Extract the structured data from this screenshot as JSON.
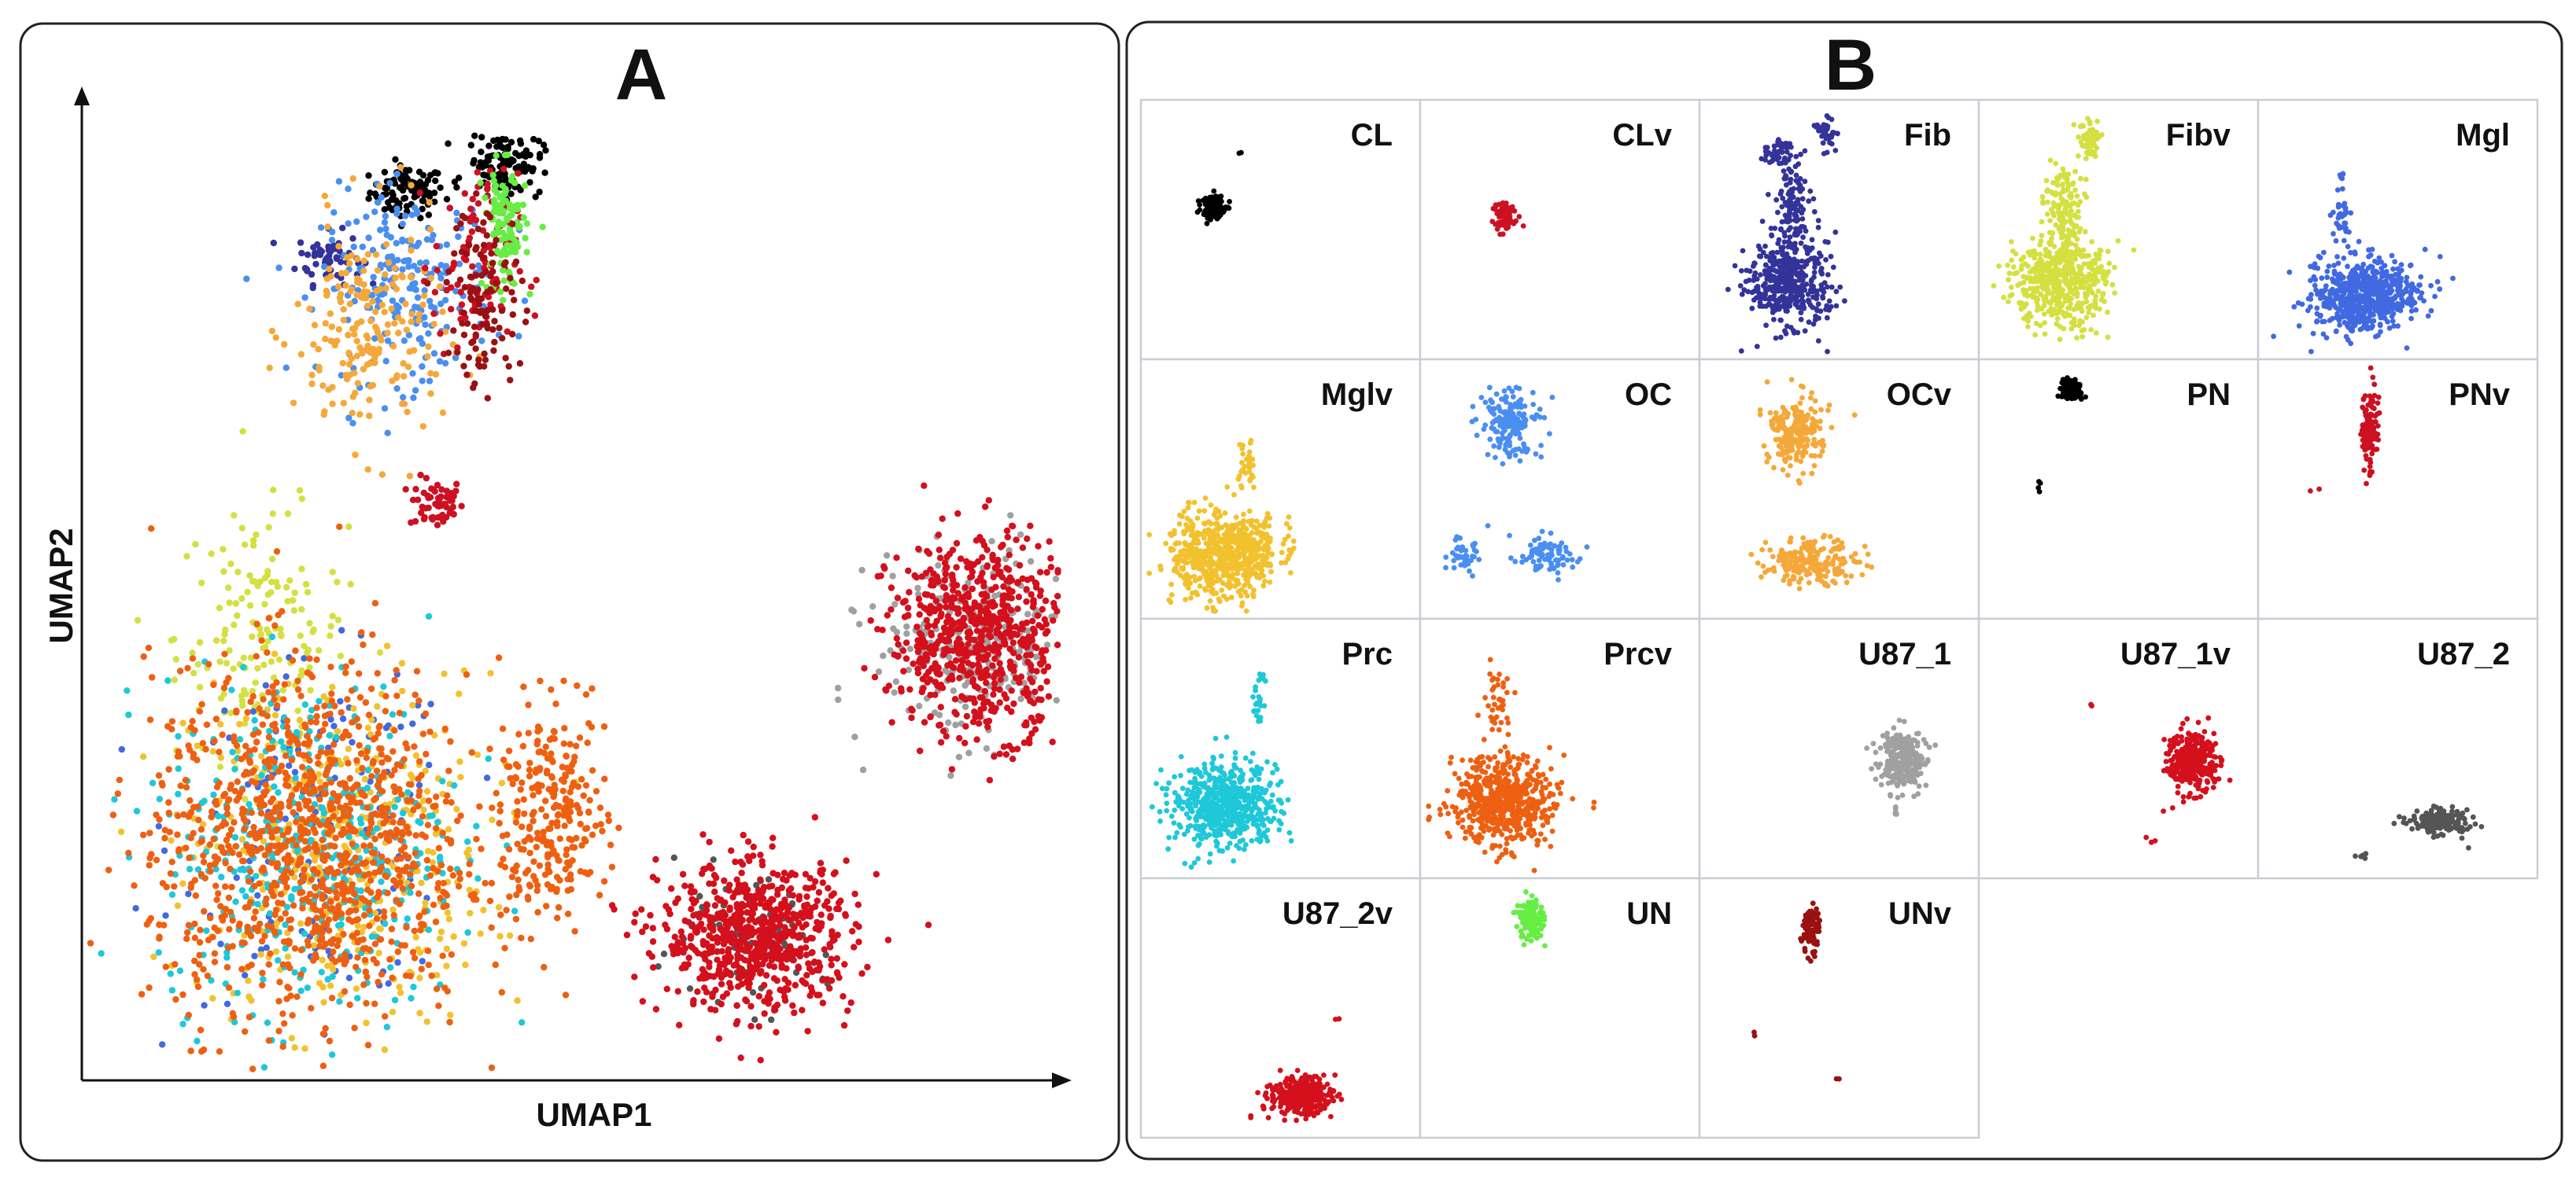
{
  "chart_data": [
    {
      "type": "scatter",
      "panel": "A",
      "title": "A",
      "xlabel": "UMAP1",
      "ylabel": "UMAP2",
      "xlim": [
        0,
        10
      ],
      "ylim": [
        0,
        10
      ],
      "legend": "none",
      "grid": false,
      "clusters": [
        {
          "name": "CL",
          "color": "#000000",
          "center": [
            3.3,
            9.3
          ],
          "spread": [
            0.35,
            0.25
          ],
          "n": 90
        },
        {
          "name": "CLv",
          "color": "#cc1122",
          "center": [
            3.6,
            6.0
          ],
          "spread": [
            0.25,
            0.25
          ],
          "n": 60
        },
        {
          "name": "Fib",
          "color": "#333399",
          "center": [
            2.5,
            8.6
          ],
          "spread": [
            0.3,
            0.25
          ],
          "n": 60
        },
        {
          "name": "Fibv",
          "color": "#d4e040",
          "center": [
            1.8,
            4.6
          ],
          "spread": [
            0.8,
            1.2
          ],
          "n": 160
        },
        {
          "name": "Mgl",
          "color": "#4169e1",
          "center": [
            2.4,
            2.5
          ],
          "spread": [
            1.3,
            1.6
          ],
          "n": 160
        },
        {
          "name": "Mglv",
          "color": "#f2c12e",
          "center": [
            2.6,
            2.3
          ],
          "spread": [
            1.4,
            1.7
          ],
          "n": 420
        },
        {
          "name": "OC",
          "color": "#4a8ff0",
          "center": [
            3.3,
            8.3
          ],
          "spread": [
            0.8,
            0.9
          ],
          "n": 220
        },
        {
          "name": "OCv",
          "color": "#f5a83a",
          "center": [
            2.9,
            7.8
          ],
          "spread": [
            0.7,
            1.1
          ],
          "n": 200
        },
        {
          "name": "PN",
          "color": "#000000",
          "center": [
            4.3,
            9.6
          ],
          "spread": [
            0.35,
            0.3
          ],
          "n": 120
        },
        {
          "name": "PNv",
          "color": "#cc1122",
          "center": [
            4.0,
            8.5
          ],
          "spread": [
            0.4,
            0.9
          ],
          "n": 110
        },
        {
          "name": "Prc",
          "color": "#1ec8d8",
          "center": [
            2.3,
            2.4
          ],
          "spread": [
            1.4,
            1.6
          ],
          "n": 420
        },
        {
          "name": "Prcv",
          "color": "#ee6011",
          "center": [
            2.3,
            2.4
          ],
          "spread": [
            1.5,
            1.7
          ],
          "n": 1100
        },
        {
          "name": "U87_1",
          "color": "#a0a0a0",
          "center": [
            9.1,
            4.5
          ],
          "spread": [
            0.9,
            0.9
          ],
          "n": 260
        },
        {
          "name": "U87_1v",
          "color": "#d3101c",
          "center": [
            9.2,
            4.6
          ],
          "spread": [
            0.85,
            0.95
          ],
          "n": 700
        },
        {
          "name": "U87_2",
          "color": "#555555",
          "center": [
            6.7,
            1.3
          ],
          "spread": [
            0.8,
            0.6
          ],
          "n": 80
        },
        {
          "name": "U87_2v",
          "color": "#d3101c",
          "center": [
            6.9,
            1.4
          ],
          "spread": [
            0.9,
            0.7
          ],
          "n": 700
        },
        {
          "name": "UN",
          "color": "#66ee44",
          "center": [
            4.3,
            8.9
          ],
          "spread": [
            0.2,
            0.6
          ],
          "n": 110
        },
        {
          "name": "UNv",
          "color": "#991111",
          "center": [
            4.1,
            8.2
          ],
          "spread": [
            0.35,
            0.9
          ],
          "n": 110
        },
        {
          "name": "Prcv-lobe",
          "color": "#ee6011",
          "center": [
            4.8,
            2.7
          ],
          "spread": [
            0.5,
            1.0
          ],
          "n": 260
        }
      ]
    },
    {
      "type": "scatter",
      "panel": "B",
      "title": "B",
      "layout": "facet-grid 5 columns x 4 rows",
      "legend": "none",
      "grid": false,
      "facets": [
        {
          "label": "CL",
          "color": "#000000",
          "blobs": [
            {
              "c": [
                0.26,
                0.42
              ],
              "s": [
                0.035,
                0.04
              ],
              "n": 130
            },
            {
              "c": [
                0.35,
                0.2
              ],
              "s": [
                0.01,
                0.01
              ],
              "n": 2
            }
          ]
        },
        {
          "label": "CLv",
          "color": "#cc1122",
          "blobs": [
            {
              "c": [
                0.3,
                0.45
              ],
              "s": [
                0.035,
                0.05
              ],
              "n": 90
            }
          ]
        },
        {
          "label": "Fib",
          "color": "#333399",
          "blobs": [
            {
              "c": [
                0.32,
                0.7
              ],
              "s": [
                0.12,
                0.14
              ],
              "n": 420
            },
            {
              "c": [
                0.33,
                0.4
              ],
              "s": [
                0.05,
                0.15
              ],
              "n": 120
            },
            {
              "c": [
                0.28,
                0.2
              ],
              "s": [
                0.04,
                0.04
              ],
              "n": 50
            },
            {
              "c": [
                0.45,
                0.13
              ],
              "s": [
                0.03,
                0.05
              ],
              "n": 40
            }
          ]
        },
        {
          "label": "Fibv",
          "color": "#d4e040",
          "blobs": [
            {
              "c": [
                0.3,
                0.7
              ],
              "s": [
                0.14,
                0.15
              ],
              "n": 500
            },
            {
              "c": [
                0.3,
                0.4
              ],
              "s": [
                0.05,
                0.15
              ],
              "n": 130
            },
            {
              "c": [
                0.4,
                0.15
              ],
              "s": [
                0.03,
                0.06
              ],
              "n": 60
            }
          ]
        },
        {
          "label": "Mgl",
          "color": "#4169e1",
          "blobs": [
            {
              "c": [
                0.38,
                0.76
              ],
              "s": [
                0.16,
                0.12
              ],
              "n": 600
            },
            {
              "c": [
                0.3,
                0.45
              ],
              "s": [
                0.03,
                0.08
              ],
              "n": 30
            },
            {
              "c": [
                0.3,
                0.3
              ],
              "s": [
                0.01,
                0.02
              ],
              "n": 6
            }
          ]
        },
        {
          "label": "Mglv",
          "color": "#f2c12e",
          "blobs": [
            {
              "c": [
                0.3,
                0.75
              ],
              "s": [
                0.16,
                0.14
              ],
              "n": 650
            },
            {
              "c": [
                0.38,
                0.4
              ],
              "s": [
                0.03,
                0.08
              ],
              "n": 30
            }
          ]
        },
        {
          "label": "OC",
          "color": "#4a8ff0",
          "blobs": [
            {
              "c": [
                0.32,
                0.25
              ],
              "s": [
                0.08,
                0.1
              ],
              "n": 180
            },
            {
              "c": [
                0.45,
                0.75
              ],
              "s": [
                0.09,
                0.06
              ],
              "n": 90
            },
            {
              "c": [
                0.15,
                0.75
              ],
              "s": [
                0.06,
                0.06
              ],
              "n": 40
            }
          ]
        },
        {
          "label": "OCv",
          "color": "#f5a83a",
          "blobs": [
            {
              "c": [
                0.35,
                0.28
              ],
              "s": [
                0.08,
                0.12
              ],
              "n": 220
            },
            {
              "c": [
                0.4,
                0.78
              ],
              "s": [
                0.14,
                0.07
              ],
              "n": 200
            }
          ]
        },
        {
          "label": "PN",
          "color": "#000000",
          "blobs": [
            {
              "c": [
                0.33,
                0.12
              ],
              "s": [
                0.035,
                0.03
              ],
              "n": 90
            },
            {
              "c": [
                0.22,
                0.5
              ],
              "s": [
                0.015,
                0.03
              ],
              "n": 4
            }
          ]
        },
        {
          "label": "PNv",
          "color": "#cc1122",
          "blobs": [
            {
              "c": [
                0.4,
                0.28
              ],
              "s": [
                0.025,
                0.14
              ],
              "n": 120
            },
            {
              "c": [
                0.2,
                0.5
              ],
              "s": [
                0.015,
                0.01
              ],
              "n": 2
            }
          ]
        },
        {
          "label": "Prc",
          "color": "#1ec8d8",
          "blobs": [
            {
              "c": [
                0.3,
                0.72
              ],
              "s": [
                0.16,
                0.13
              ],
              "n": 600
            },
            {
              "c": [
                0.42,
                0.3
              ],
              "s": [
                0.02,
                0.1
              ],
              "n": 25
            }
          ]
        },
        {
          "label": "Prcv",
          "color": "#ee6011",
          "blobs": [
            {
              "c": [
                0.3,
                0.7
              ],
              "s": [
                0.15,
                0.14
              ],
              "n": 600
            },
            {
              "c": [
                0.28,
                0.3
              ],
              "s": [
                0.04,
                0.1
              ],
              "n": 40
            }
          ]
        },
        {
          "label": "U87_1",
          "color": "#a0a0a0",
          "blobs": [
            {
              "c": [
                0.73,
                0.55
              ],
              "s": [
                0.07,
                0.09
              ],
              "n": 250
            },
            {
              "c": [
                0.7,
                0.75
              ],
              "s": [
                0.01,
                0.02
              ],
              "n": 6
            }
          ]
        },
        {
          "label": "U87_1v",
          "color": "#d3101c",
          "blobs": [
            {
              "c": [
                0.76,
                0.55
              ],
              "s": [
                0.07,
                0.1
              ],
              "n": 320
            },
            {
              "c": [
                0.4,
                0.33
              ],
              "s": [
                0.01,
                0.01
              ],
              "n": 2
            },
            {
              "c": [
                0.6,
                0.85
              ],
              "s": [
                0.03,
                0.02
              ],
              "n": 3
            }
          ]
        },
        {
          "label": "U87_2",
          "color": "#555555",
          "blobs": [
            {
              "c": [
                0.65,
                0.78
              ],
              "s": [
                0.09,
                0.04
              ],
              "n": 180
            },
            {
              "c": [
                0.35,
                0.92
              ],
              "s": [
                0.04,
                0.01
              ],
              "n": 6
            }
          ]
        },
        {
          "label": "U87_2v",
          "color": "#d3101c",
          "blobs": [
            {
              "c": [
                0.57,
                0.84
              ],
              "s": [
                0.09,
                0.06
              ],
              "n": 320
            },
            {
              "c": [
                0.4,
                0.92
              ],
              "s": [
                0.01,
                0.01
              ],
              "n": 2
            },
            {
              "c": [
                0.7,
                0.55
              ],
              "s": [
                0.01,
                0.01
              ],
              "n": 2
            }
          ]
        },
        {
          "label": "UN",
          "color": "#66ee44",
          "blobs": [
            {
              "c": [
                0.4,
                0.16
              ],
              "s": [
                0.04,
                0.07
              ],
              "n": 110
            }
          ]
        },
        {
          "label": "UNv",
          "color": "#991111",
          "blobs": [
            {
              "c": [
                0.4,
                0.2
              ],
              "s": [
                0.025,
                0.08
              ],
              "n": 80
            },
            {
              "c": [
                0.2,
                0.6
              ],
              "s": [
                0.01,
                0.01
              ],
              "n": 2
            },
            {
              "c": [
                0.5,
                0.77
              ],
              "s": [
                0.01,
                0.01
              ],
              "n": 2
            }
          ]
        }
      ]
    }
  ]
}
